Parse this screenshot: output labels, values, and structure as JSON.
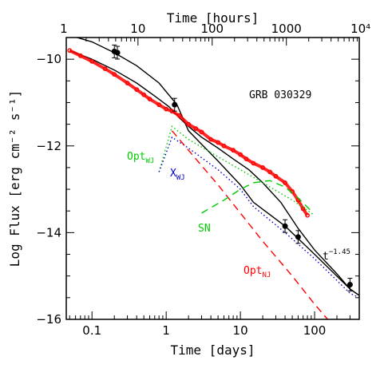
{
  "chart_data": {
    "type": "line",
    "title": "GRB 030329",
    "xlabel": "Time [days]",
    "x2label": "Time [hours]",
    "ylabel": "Log Flux [erg cm⁻² s⁻¹]",
    "x_scale": "log",
    "xlim": [
      0.045,
      400
    ],
    "ylim": [
      -16,
      -9.5
    ],
    "x_ticks": [
      {
        "v": 0.1,
        "label": "0.1"
      },
      {
        "v": 1,
        "label": "1"
      },
      {
        "v": 10,
        "label": "10"
      },
      {
        "v": 100,
        "label": "100"
      }
    ],
    "x2_ticks": [
      {
        "v": 1,
        "label": "1"
      },
      {
        "v": 10,
        "label": "10"
      },
      {
        "v": 100,
        "label": "100"
      },
      {
        "v": 1000,
        "label": "1000"
      },
      {
        "v": 10000,
        "label": "10⁴"
      }
    ],
    "y_ticks": [
      {
        "v": -10,
        "label": "−10"
      },
      {
        "v": -12,
        "label": "−12"
      },
      {
        "v": -14,
        "label": "−14"
      },
      {
        "v": -16,
        "label": "−16"
      }
    ],
    "colors": {
      "total_xray": "#000000",
      "optical_data": "#ff0000",
      "opt_wj": "#00cc00",
      "x_wj": "#0000cc",
      "opt_nj": "#ff0000",
      "sn": "#00cc00"
    },
    "series": [
      {
        "key": "total",
        "style": "solid",
        "color": "#000000",
        "x": [
          0.05,
          0.1,
          0.2,
          0.4,
          0.8,
          1.4,
          2,
          5,
          10,
          15,
          40,
          100,
          300,
          400
        ],
        "y": [
          -9.45,
          -9.6,
          -9.85,
          -10.15,
          -10.55,
          -11.05,
          -11.65,
          -12.35,
          -12.9,
          -13.3,
          -13.85,
          -14.5,
          -15.3,
          -15.45
        ]
      },
      {
        "key": "optical_model",
        "style": "solid",
        "color": "#000000",
        "x": [
          0.05,
          0.1,
          0.2,
          0.4,
          0.7,
          1.1,
          1.5,
          2,
          3,
          5,
          8,
          13,
          20,
          35,
          60,
          100,
          200,
          300,
          400
        ],
        "y": [
          -9.8,
          -10.0,
          -10.25,
          -10.55,
          -10.85,
          -11.1,
          -11.35,
          -11.55,
          -11.8,
          -12.05,
          -12.3,
          -12.55,
          -12.85,
          -13.3,
          -13.9,
          -14.4,
          -14.95,
          -15.3,
          -15.45
        ]
      },
      {
        "key": "optical_data",
        "style": "points",
        "color": "#ff0000",
        "x": [
          0.05,
          0.07,
          0.1,
          0.15,
          0.2,
          0.3,
          0.4,
          0.5,
          0.6,
          0.8,
          1.0,
          1.2,
          1.5,
          2,
          2.5,
          3,
          4,
          5,
          6,
          8,
          10,
          12,
          15,
          20,
          25,
          30,
          40,
          50,
          60,
          70,
          80
        ],
        "y": [
          -9.8,
          -9.92,
          -10.05,
          -10.22,
          -10.35,
          -10.55,
          -10.7,
          -10.82,
          -10.92,
          -11.05,
          -11.15,
          -11.2,
          -11.3,
          -11.5,
          -11.6,
          -11.68,
          -11.85,
          -11.92,
          -12.0,
          -12.1,
          -12.2,
          -12.3,
          -12.4,
          -12.5,
          -12.6,
          -12.7,
          -12.85,
          -13.05,
          -13.25,
          -13.45,
          -13.6
        ]
      },
      {
        "key": "opt_wj",
        "style": "dotted",
        "color": "#00cc00",
        "label": "Opt",
        "x": [
          0.8,
          1.2,
          2,
          5,
          10,
          20,
          50,
          100
        ],
        "y": [
          -12.6,
          -11.55,
          -11.85,
          -12.25,
          -12.55,
          -12.85,
          -13.25,
          -13.6
        ]
      },
      {
        "key": "x_wj",
        "style": "dotted",
        "color": "#0000cc",
        "label": "X",
        "x": [
          0.8,
          1.2,
          2,
          5,
          10,
          15,
          40,
          100,
          300,
          400
        ],
        "y": [
          -12.6,
          -11.8,
          -12.05,
          -12.55,
          -13.0,
          -13.4,
          -14.0,
          -14.6,
          -15.4,
          -15.5
        ]
      },
      {
        "key": "opt_nj",
        "style": "dashed",
        "color": "#ff0000",
        "label": "Opt",
        "x": [
          1.2,
          2,
          5,
          10,
          20,
          50,
          100,
          150
        ],
        "y": [
          -11.65,
          -12.1,
          -12.9,
          -13.55,
          -14.2,
          -15.0,
          -15.65,
          -16.0
        ]
      },
      {
        "key": "sn",
        "style": "dashed",
        "color": "#00cc00",
        "label": "SN",
        "x": [
          3,
          6,
          10,
          15,
          25,
          40,
          60,
          90
        ],
        "y": [
          -13.55,
          -13.25,
          -13.0,
          -12.85,
          -12.8,
          -12.95,
          -13.2,
          -13.5
        ]
      }
    ],
    "xray_points": [
      {
        "x": 0.2,
        "y": -9.82
      },
      {
        "x": 0.22,
        "y": -9.85
      },
      {
        "x": 1.3,
        "y": -11.05
      },
      {
        "x": 40,
        "y": -13.85
      },
      {
        "x": 60,
        "y": -14.1
      },
      {
        "x": 300,
        "y": -15.2
      }
    ],
    "annotations": {
      "title": "GRB 030329",
      "opt_wj": {
        "main": "Opt",
        "sub": "WJ"
      },
      "x_wj": {
        "main": "X",
        "sub": "WJ"
      },
      "opt_nj": {
        "main": "Opt",
        "sub": "NJ"
      },
      "sn": "SN",
      "powerlaw": {
        "main": "t",
        "sup": "−1.45"
      }
    }
  }
}
